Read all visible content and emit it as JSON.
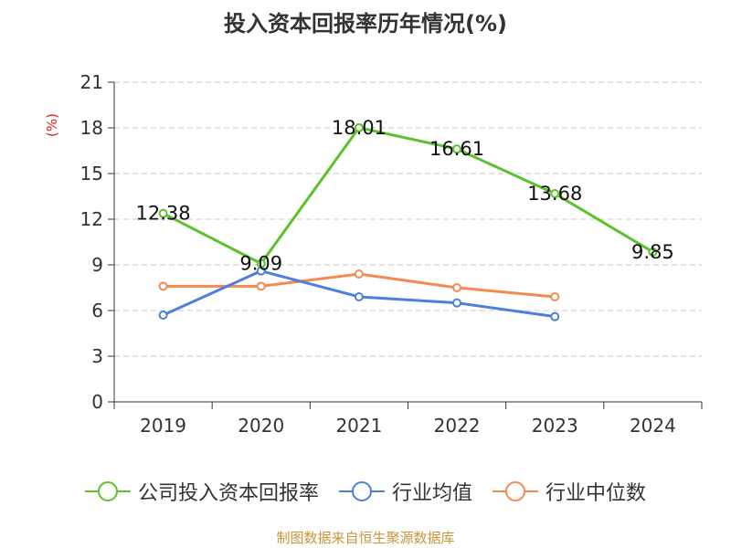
{
  "chart_data": {
    "type": "line",
    "title": "投入资本回报率历年情况(%)",
    "ylabel": "(%)",
    "xlabel": "",
    "categories": [
      "2019",
      "2020",
      "2021",
      "2022",
      "2023",
      "2024"
    ],
    "ylim": [
      0,
      21
    ],
    "yticks": [
      0,
      3,
      6,
      9,
      12,
      15,
      18,
      21
    ],
    "grid": true,
    "legend_position": "bottom",
    "series": [
      {
        "name": "公司投入资本回报率",
        "color": "#5cc12a",
        "values": [
          12.38,
          9.09,
          18.01,
          16.61,
          13.68,
          9.85
        ],
        "labels": [
          "12.38",
          "9.09",
          "18.01",
          "16.61",
          "13.68",
          "9.85"
        ]
      },
      {
        "name": "行业均值",
        "color": "#4f7fdc",
        "values": [
          5.7,
          8.6,
          6.9,
          6.5,
          5.6,
          null
        ]
      },
      {
        "name": "行业中位数",
        "color": "#f38a52",
        "values": [
          7.6,
          7.6,
          8.4,
          7.5,
          6.9,
          null
        ]
      }
    ]
  },
  "source": "制图数据来自恒生聚源数据库"
}
